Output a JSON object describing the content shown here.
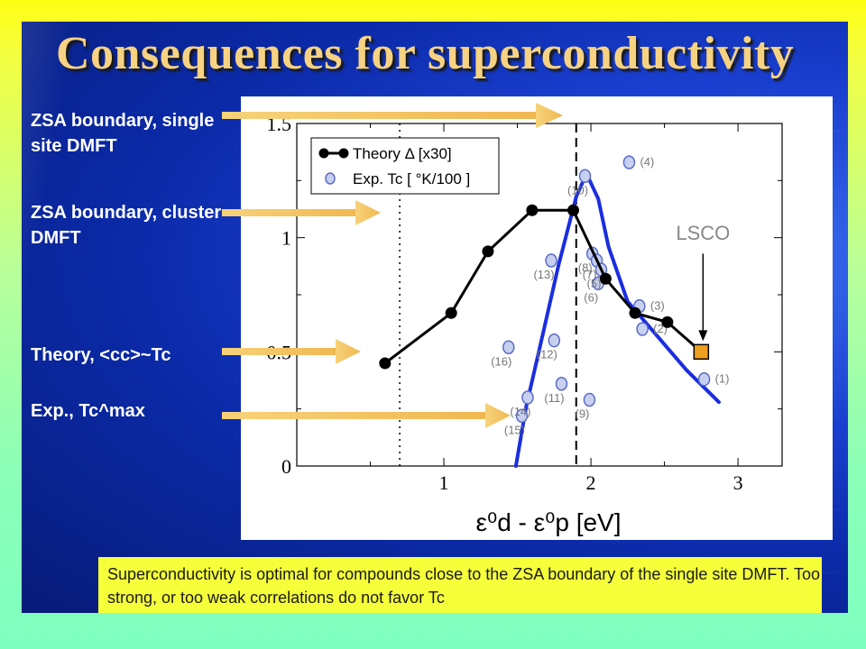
{
  "slide": {
    "title": "Consequences for superconductivity",
    "labels": [
      {
        "id": "zsa-single",
        "text": "ZSA boundary, single site DMFT"
      },
      {
        "id": "zsa-cluster",
        "text": "ZSA boundary, cluster DMFT"
      },
      {
        "id": "theory",
        "text": "Theory, <cc>~Tc"
      },
      {
        "id": "exp",
        "text": "Exp., Tc^max"
      }
    ],
    "caption": "Superconductivity is optimal for compounds close to the ZSA boundary of the single site DMFT. Too strong, or too weak correlations do not favor Tc",
    "colors": {
      "theory": "#000000",
      "exp_points": "#5a6cc8",
      "exp_fill": "#c8d0f0",
      "blue_curve": "#1a2ee0",
      "lsco": "#f0a020",
      "arrows": "#f3c86a"
    }
  },
  "chart_data": {
    "type": "scatter",
    "xlabel": "ε⁰d - ε⁰p  [eV]",
    "xlim": [
      0.0,
      3.3
    ],
    "ylim": [
      0,
      1.5
    ],
    "x_ticks": [
      "1",
      "2",
      "3"
    ],
    "y_ticks": [
      "0",
      "0.5",
      "1",
      "1.5"
    ],
    "legend": {
      "position": "top-left",
      "entries": [
        "Theory Δ [x30]",
        "Exp. Tc [ °K/100 ]"
      ]
    },
    "vlines": [
      {
        "x": 1.9,
        "style": "dashed",
        "meaning": "ZSA boundary, single site DMFT"
      },
      {
        "x": 0.7,
        "style": "dotted",
        "meaning": "ZSA boundary, cluster DMFT"
      }
    ],
    "series": [
      {
        "name": "Theory Δ [x30]",
        "x": [
          0.6,
          1.05,
          1.3,
          1.6,
          1.88,
          2.1,
          2.3,
          2.52,
          2.75
        ],
        "y": [
          0.45,
          0.67,
          0.94,
          1.12,
          1.12,
          0.82,
          0.67,
          0.63,
          0.5
        ]
      },
      {
        "name": "Exp. Tc [ °K/100 ]",
        "points": [
          {
            "x": 1.44,
            "y": 0.52,
            "label": "(16)"
          },
          {
            "x": 1.53,
            "y": 0.22,
            "label": "(15)"
          },
          {
            "x": 1.57,
            "y": 0.3,
            "label": "(14)"
          },
          {
            "x": 1.73,
            "y": 0.9,
            "label": "(13)"
          },
          {
            "x": 1.75,
            "y": 0.55,
            "label": "(12)"
          },
          {
            "x": 1.8,
            "y": 0.36,
            "label": "(11)"
          },
          {
            "x": 1.96,
            "y": 1.27,
            "label": "(10)"
          },
          {
            "x": 1.99,
            "y": 0.29,
            "label": "(9)"
          },
          {
            "x": 2.01,
            "y": 0.93,
            "label": "(8)"
          },
          {
            "x": 2.04,
            "y": 0.9,
            "label": "(7)"
          },
          {
            "x": 2.05,
            "y": 0.8,
            "label": "(6)"
          },
          {
            "x": 2.07,
            "y": 0.86,
            "label": "(5)"
          },
          {
            "x": 2.26,
            "y": 1.33,
            "label": "(4)"
          },
          {
            "x": 2.33,
            "y": 0.7,
            "label": "(3)"
          },
          {
            "x": 2.35,
            "y": 0.6,
            "label": "(2)"
          },
          {
            "x": 2.77,
            "y": 0.38,
            "label": "(1)"
          }
        ]
      },
      {
        "name": "",
        "x": [
          1.49,
          1.56,
          1.66,
          1.78,
          1.9,
          1.97,
          2.05,
          2.12,
          2.25,
          2.45,
          2.65,
          2.87
        ],
        "y": [
          0.0,
          0.26,
          0.54,
          0.88,
          1.18,
          1.28,
          1.17,
          0.96,
          0.72,
          0.57,
          0.42,
          0.28
        ]
      }
    ],
    "annotations": [
      {
        "text": "LSCO",
        "x": 2.75,
        "y": 0.5
      }
    ],
    "grid": false
  }
}
